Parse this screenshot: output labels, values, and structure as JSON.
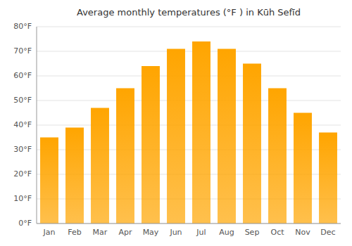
{
  "chart_data": {
    "type": "bar",
    "title": "Average monthly temperatures (°F ) in Kūh Sefīd",
    "categories": [
      "Jan",
      "Feb",
      "Mar",
      "Apr",
      "May",
      "Jun",
      "Jul",
      "Aug",
      "Sep",
      "Oct",
      "Nov",
      "Dec"
    ],
    "values": [
      35,
      39,
      47,
      55,
      64,
      71,
      74,
      71,
      65,
      55,
      45,
      37
    ],
    "color": "#FFA500",
    "ylim": [
      0,
      80
    ],
    "yticks": [
      {
        "value": 0,
        "label": "0°F"
      },
      {
        "value": 10,
        "label": "10°F"
      },
      {
        "value": 20,
        "label": "20°F"
      },
      {
        "value": 30,
        "label": "30°F"
      },
      {
        "value": 40,
        "label": "40°F"
      },
      {
        "value": 50,
        "label": "50°F"
      },
      {
        "value": 60,
        "label": "60°F"
      },
      {
        "value": 70,
        "label": "70°F"
      },
      {
        "value": 80,
        "label": "80°F"
      }
    ],
    "grid": true
  }
}
